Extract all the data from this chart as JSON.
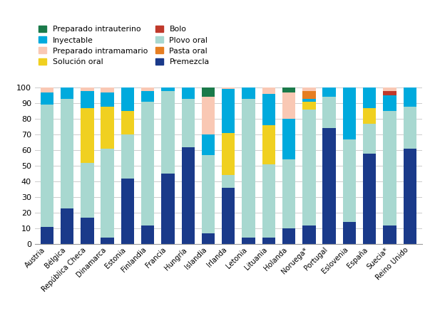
{
  "countries": [
    "Austria",
    "Bélgica",
    "República Checa",
    "Dinamarca",
    "Estonia",
    "Finlandia",
    "Francia",
    "Hungría",
    "Islandia",
    "Irlanda",
    "Letonia",
    "Lituania",
    "Holanda",
    "Noruega*",
    "Portugal",
    "Eslovenia",
    "España",
    "Suecia*",
    "Reino Unido"
  ],
  "categories": [
    "Premezcla",
    "Plovo oral",
    "Solución oral",
    "Inyectable",
    "Pasta oral",
    "Bolo",
    "Preparado intramamario",
    "Preparado intrauterino"
  ],
  "colors": [
    "#1a3a8a",
    "#a8d8d0",
    "#f0d020",
    "#00aadd",
    "#e67e22",
    "#c0392b",
    "#f9c8b4",
    "#1a7a4a"
  ],
  "data": {
    "Premezcla": [
      11,
      23,
      17,
      4,
      42,
      12,
      45,
      62,
      7,
      36,
      4,
      4,
      10,
      12,
      74,
      14,
      58,
      12,
      61
    ],
    "Plovo oral": [
      78,
      70,
      35,
      57,
      28,
      79,
      53,
      31,
      50,
      8,
      89,
      47,
      44,
      74,
      20,
      53,
      19,
      73,
      27
    ],
    "Solución oral": [
      0,
      0,
      35,
      27,
      15,
      0,
      0,
      0,
      0,
      27,
      0,
      25,
      0,
      5,
      0,
      0,
      10,
      0,
      0
    ],
    "Inyectable": [
      8,
      7,
      11,
      9,
      15,
      7,
      2,
      7,
      13,
      28,
      7,
      20,
      26,
      2,
      6,
      33,
      13,
      10,
      12
    ],
    "Pasta oral": [
      0,
      0,
      0,
      0,
      0,
      0,
      0,
      0,
      0,
      0,
      0,
      0,
      0,
      5,
      0,
      0,
      0,
      0,
      0
    ],
    "Bolo": [
      0,
      0,
      0,
      0,
      0,
      0,
      0,
      0,
      0,
      0,
      0,
      0,
      0,
      0,
      0,
      0,
      0,
      3,
      0
    ],
    "Preparado intramamario": [
      3,
      0,
      2,
      3,
      0,
      2,
      0,
      0,
      24,
      1,
      0,
      4,
      17,
      5,
      0,
      0,
      0,
      2,
      0
    ],
    "Preparado intrauterino": [
      0,
      0,
      0,
      0,
      0,
      0,
      0,
      0,
      6,
      0,
      0,
      0,
      3,
      1,
      0,
      0,
      0,
      0,
      0
    ]
  },
  "legend_categories": [
    "Preparado intrauterino",
    "Inyectable",
    "Preparado intramamario",
    "Solución oral",
    "Bolo",
    "Plovo oral",
    "Pasta oral",
    "Premezcla"
  ],
  "legend_colors": [
    "#1a7a4a",
    "#00aadd",
    "#f9c8b4",
    "#f0d020",
    "#c0392b",
    "#a8d8d0",
    "#e67e22",
    "#1a3a8a"
  ],
  "ylim": [
    0,
    100
  ],
  "yticks": [
    0,
    10,
    20,
    30,
    40,
    50,
    60,
    70,
    80,
    90,
    100
  ],
  "bar_width": 0.65
}
